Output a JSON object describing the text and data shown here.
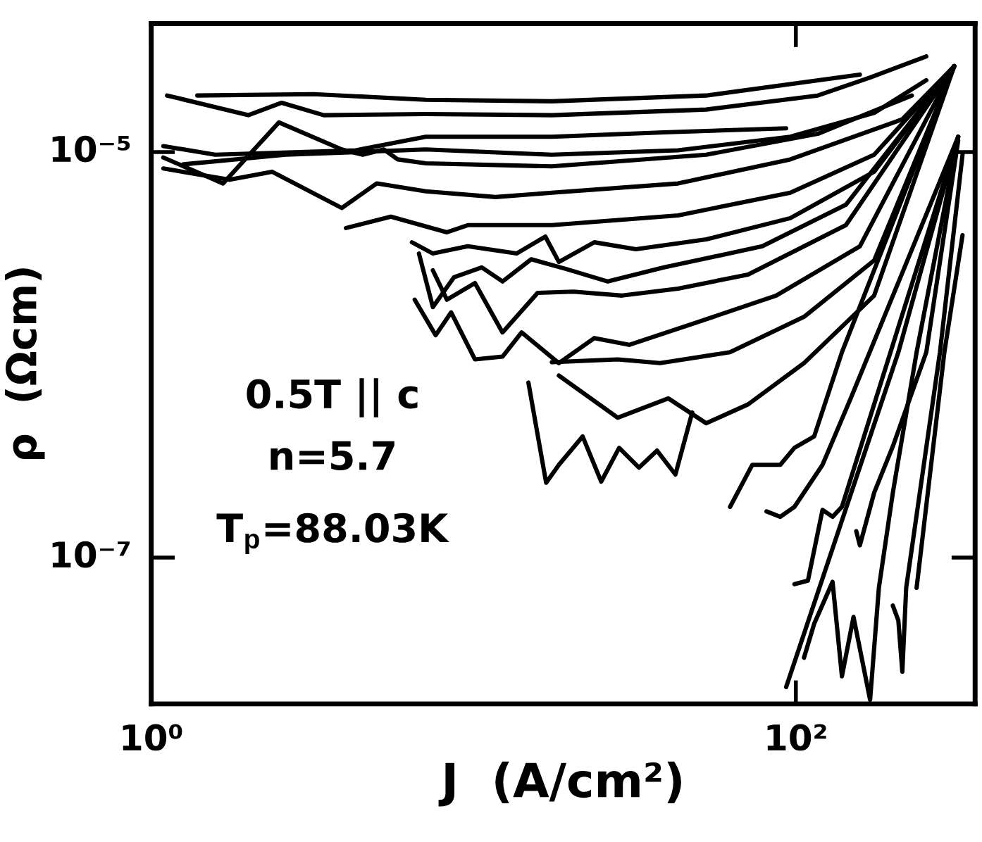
{
  "chart_data": {
    "type": "line",
    "xlabel": "J  (A/cm²)",
    "ylabel": "ρ  (Ωcm)",
    "log": "xy",
    "marker": "none",
    "line_style": "solid",
    "xlim": [
      1,
      360
    ],
    "ylim": [
      1.9e-08,
      4.3e-05
    ],
    "xticks": [
      {
        "value": 1,
        "label": "10⁰"
      },
      {
        "value": 100,
        "label": "10²"
      }
    ],
    "yticks": [
      {
        "value": 1e-07,
        "label": "10⁻⁷"
      },
      {
        "value": 1e-05,
        "label": "10⁻⁵"
      }
    ],
    "annotations": [
      "0.5T || c",
      "n=5.7",
      "T$_{p}$=88.03K"
    ],
    "series": [
      {
        "color": "#000000",
        "x": [
          1.39,
          3.19,
          7.11,
          17.5,
          52.7,
          158
        ],
        "values": [
          1.9e-05,
          1.93e-05,
          1.81e-05,
          1.78e-05,
          1.9e-05,
          2.41e-05
        ]
      },
      {
        "color": "#000000",
        "x": [
          1.12,
          2.0,
          2.54,
          3.43,
          7.11,
          17.5,
          52.7,
          117,
          170,
          254
        ],
        "values": [
          1.9e-05,
          1.52e-05,
          1.75e-05,
          1.52e-05,
          1.54e-05,
          1.52e-05,
          1.62e-05,
          1.9e-05,
          2.33e-05,
          2.96e-05
        ]
      },
      {
        "color": "#000000",
        "x": [
          1.09,
          1.58,
          4.31,
          7.11,
          17.5,
          39.0,
          93.3
        ],
        "values": [
          1.07e-05,
          9.7e-06,
          1.02e-05,
          1.19e-05,
          1.19e-05,
          1.25e-05,
          1.31e-05
        ]
      },
      {
        "color": "#000000",
        "x": [
          1.26,
          2.61,
          7.11,
          17.5,
          43.1,
          96.1,
          175,
          254
        ],
        "values": [
          8.7e-06,
          9.7e-06,
          1.03e-05,
          9.7e-06,
          1.02e-05,
          1.19e-05,
          1.56e-05,
          2.26e-05
        ]
      },
      {
        "color": "#000000",
        "x": [
          1.09,
          1.67,
          2.49,
          3.9,
          4.53,
          5.27,
          5.82,
          7.11,
          17.5,
          52.7,
          117,
          229
        ],
        "values": [
          9.4e-06,
          7e-06,
          1.4e-05,
          1.03e-05,
          9.7e-06,
          1.03e-05,
          9.2e-06,
          8.8e-06,
          8.5e-06,
          9.7e-06,
          1.23e-05,
          1.9e-05
        ]
      },
      {
        "color": "#000000",
        "x": [
          1.09,
          1.75,
          2.37,
          3.9,
          5.01,
          7.11,
          11.7,
          17.5,
          43.1,
          96.1,
          214,
          310
        ],
        "values": [
          8.3e-06,
          7.3e-06,
          8e-06,
          5.3e-06,
          7e-06,
          6.4e-06,
          6e-06,
          6.3e-06,
          7e-06,
          9.2e-06,
          1.45e-05,
          2.65e-05
        ]
      },
      {
        "color": "#000000",
        "x": [
          4.02,
          5.54,
          8.27,
          9.6,
          17.5,
          43.1,
          96.1,
          175,
          310
        ],
        "values": [
          4.22e-06,
          4.8e-06,
          4.02e-06,
          4.36e-06,
          4.36e-06,
          4.87e-06,
          6.3e-06,
          9.7e-06,
          2.65e-05
        ]
      },
      {
        "color": "#000000",
        "x": [
          6.44,
          7.48,
          9.6,
          13.6,
          16.7,
          18.4,
          23.7,
          31.9,
          52.7,
          96.1,
          175,
          310
        ],
        "values": [
          3.59e-06,
          3.16e-06,
          3.43e-06,
          3.16e-06,
          3.83e-06,
          2.87e-06,
          3.59e-06,
          3.32e-06,
          3.71e-06,
          4.72e-06,
          8e-06,
          2.65e-05
        ]
      },
      {
        "color": "#000000",
        "x": [
          6.77,
          7.48,
          8.69,
          10.6,
          12.3,
          15.1,
          19.4,
          26.1,
          39.0,
          78.7,
          143,
          310
        ],
        "values": [
          3.16e-06,
          1.72e-06,
          2.41e-06,
          2.7e-06,
          2.3e-06,
          2.96e-06,
          2.65e-06,
          2.3e-06,
          2.7e-06,
          3.43e-06,
          5.5e-06,
          2.65e-05
        ]
      },
      {
        "color": "#000000",
        "x": [
          7.48,
          8.27,
          10.1,
          12.3,
          15.8,
          20.4,
          28.9,
          43.1,
          71.1,
          143,
          310
        ],
        "values": [
          2.61e-06,
          1.87e-06,
          2.26e-06,
          1.29e-06,
          2.02e-06,
          2.05e-06,
          1.96e-06,
          2.12e-06,
          2.49e-06,
          4.36e-06,
          2.65e-05
        ]
      },
      {
        "color": "#000000",
        "x": [
          6.57,
          7.63,
          8.52,
          10.1,
          12.3,
          14.1,
          18.4,
          23.7,
          30.4,
          47.7,
          86.9,
          158,
          310
        ],
        "values": [
          1.87e-06,
          1.25e-06,
          1.62e-06,
          9.5e-07,
          9.8e-07,
          1.29e-06,
          9.1e-07,
          1.21e-06,
          1.12e-06,
          1.42e-06,
          1.96e-06,
          3.43e-06,
          2.65e-05
        ]
      },
      {
        "color": "#000000",
        "x": [
          17.5,
          28.0,
          37.9,
          62.5,
          106,
          175,
          310
        ],
        "values": [
          9.2e-07,
          9.5e-07,
          9.1e-07,
          1.03e-06,
          1.54e-06,
          2.92e-06,
          2.65e-05
        ]
      },
      {
        "color": "#000000",
        "x": [
          18.4,
          28.0,
          40.2,
          52.7,
          71.1,
          106,
          175,
          310
        ],
        "values": [
          7.9e-07,
          4.9e-07,
          6.1e-07,
          4.6e-07,
          5.7e-07,
          9.1e-07,
          1.96e-06,
          2.65e-05
        ]
      },
      {
        "color": "#000000",
        "x": [
          14.8,
          16.8,
          18.4,
          21.8,
          24.9,
          28.3,
          32.6,
          37.1,
          42.3,
          47.7
        ],
        "values": [
          7.3e-07,
          2.34e-07,
          2.87e-07,
          3.96e-07,
          2.37e-07,
          3.48e-07,
          2.78e-07,
          3.37e-07,
          2.57e-07,
          5.2e-07
        ]
      },
      {
        "color": "#000000",
        "x": [
          62.5,
          73.3,
          89.5,
          99,
          114,
          139,
          310
        ],
        "values": [
          1.78e-07,
          2.87e-07,
          2.87e-07,
          3.48e-07,
          3.96e-07,
          1.03e-06,
          2.65e-05
        ]
      },
      {
        "color": "#000000",
        "x": [
          81.1,
          89.5,
          99,
          121,
          148,
          319
        ],
        "values": [
          1.69e-07,
          1.59e-07,
          1.78e-07,
          2.87e-07,
          6.1e-07,
          1.19e-05
        ]
      },
      {
        "color": "#000000",
        "x": [
          99,
          109,
          121,
          130,
          139,
          319
        ],
        "values": [
          7.4e-08,
          7.7e-08,
          1.72e-07,
          1.59e-07,
          1.78e-07,
          1.19e-05
        ]
      },
      {
        "color": "#000000",
        "x": [
          93.3,
          208,
          319
        ],
        "values": [
          2.3e-08,
          1.03e-06,
          1.19e-05
        ]
      },
      {
        "color": "#000000",
        "x": [
          106,
          114,
          130,
          139,
          151,
          170,
          181,
          200,
          237,
          319
        ],
        "values": [
          3.21e-08,
          4.72e-08,
          7.6e-08,
          2.6e-08,
          5.1e-08,
          1.99e-08,
          7.1e-08,
          2.09e-07,
          1.03e-06,
          1.19e-05
        ]
      },
      {
        "color": "#000000",
        "x": [
          154,
          158,
          175,
          200,
          254,
          319
        ],
        "values": [
          1.35e-07,
          1.15e-07,
          2.09e-07,
          3.54e-07,
          1.03e-06,
          1.14e-05
        ]
      },
      {
        "color": "#000000",
        "x": [
          200,
          208,
          214,
          220,
          280,
          329
        ],
        "values": [
          5.8e-08,
          4.9e-08,
          2.74e-08,
          7.1e-08,
          1.03e-06,
          9.7e-06
        ]
      },
      {
        "color": "#000000",
        "x": [
          237,
          289,
          329
        ],
        "values": [
          7.1e-08,
          1.03e-06,
          3.89e-06
        ]
      }
    ]
  }
}
